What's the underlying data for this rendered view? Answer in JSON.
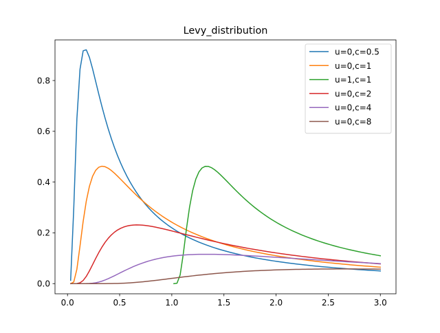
{
  "chart_data": {
    "type": "line",
    "title": "Levy_distribution",
    "xlabel": "",
    "ylabel": "",
    "xlim": [
      -0.12,
      3.15
    ],
    "ylim": [
      -0.04,
      0.96
    ],
    "xticks": [
      0.0,
      0.5,
      1.0,
      1.5,
      2.0,
      2.5,
      3.0
    ],
    "xtick_labels": [
      "0.0",
      "0.5",
      "1.0",
      "1.5",
      "2.0",
      "2.5",
      "3.0"
    ],
    "yticks": [
      0.0,
      0.2,
      0.4,
      0.6,
      0.8
    ],
    "ytick_labels": [
      "0.0",
      "0.2",
      "0.4",
      "0.6",
      "0.8"
    ],
    "grid": false,
    "legend_position": "top-right",
    "x_range": [
      0.03,
      3.0
    ],
    "series": [
      {
        "name": "u=0,c=0.5",
        "u": 0,
        "c": 0.5,
        "color": "#1f77b4"
      },
      {
        "name": "u=0,c=1",
        "u": 0,
        "c": 1,
        "color": "#ff7f0e"
      },
      {
        "name": "u=1,c=1",
        "u": 1,
        "c": 1,
        "color": "#2ca02c"
      },
      {
        "name": "u=0,c=2",
        "u": 0,
        "c": 2,
        "color": "#d62728"
      },
      {
        "name": "u=0,c=4",
        "u": 0,
        "c": 4,
        "color": "#9467bd"
      },
      {
        "name": "u=0,c=8",
        "u": 0,
        "c": 8,
        "color": "#8c564b"
      }
    ]
  }
}
